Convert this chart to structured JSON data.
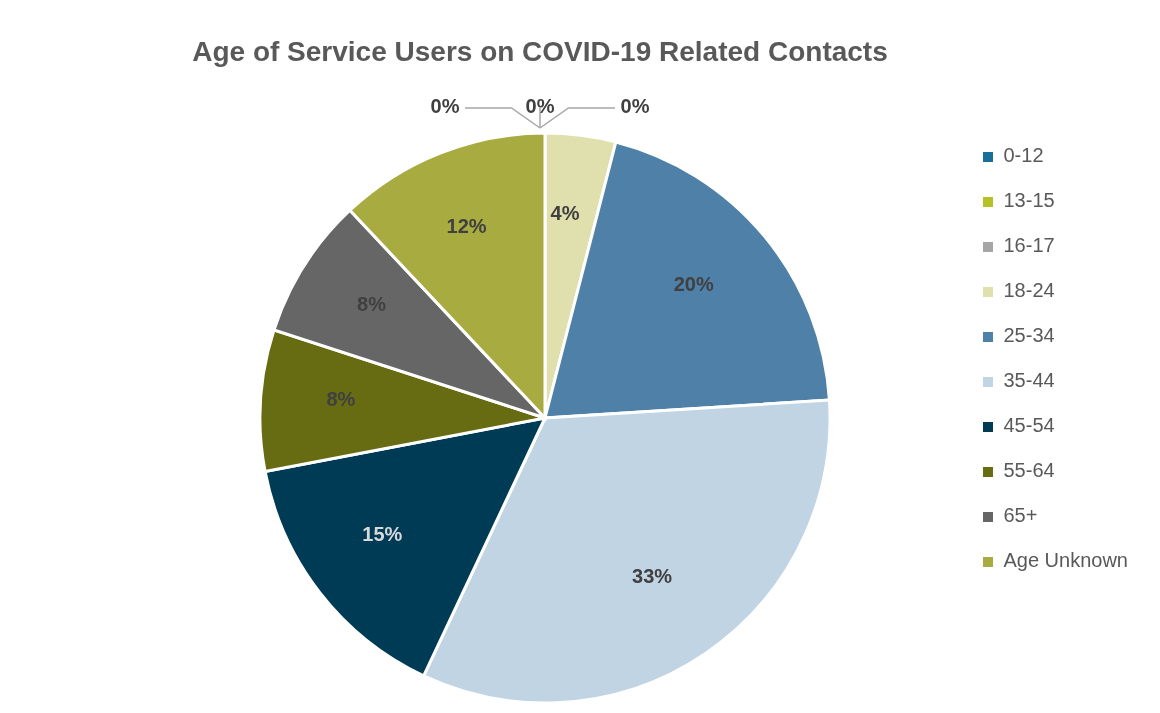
{
  "chart_data": {
    "type": "pie",
    "title": "Age of Service Users on COVID-19 Related Contacts",
    "categories": [
      "0-12",
      "13-15",
      "16-17",
      "18-24",
      "25-34",
      "35-44",
      "45-54",
      "55-64",
      "65+",
      "Age Unknown"
    ],
    "values": [
      0,
      0,
      0,
      4,
      20,
      33,
      15,
      8,
      8,
      12
    ],
    "value_labels": [
      "0%",
      "0%",
      "0%",
      "4%",
      "20%",
      "33%",
      "15%",
      "8%",
      "8%",
      "12%"
    ],
    "colors": [
      "#1a6f96",
      "#b5c226",
      "#a6a6a6",
      "#dfe0ad",
      "#4f81a8",
      "#c0d4e3",
      "#003b55",
      "#676c13",
      "#666666",
      "#a8ab40"
    ],
    "legend": "right"
  }
}
